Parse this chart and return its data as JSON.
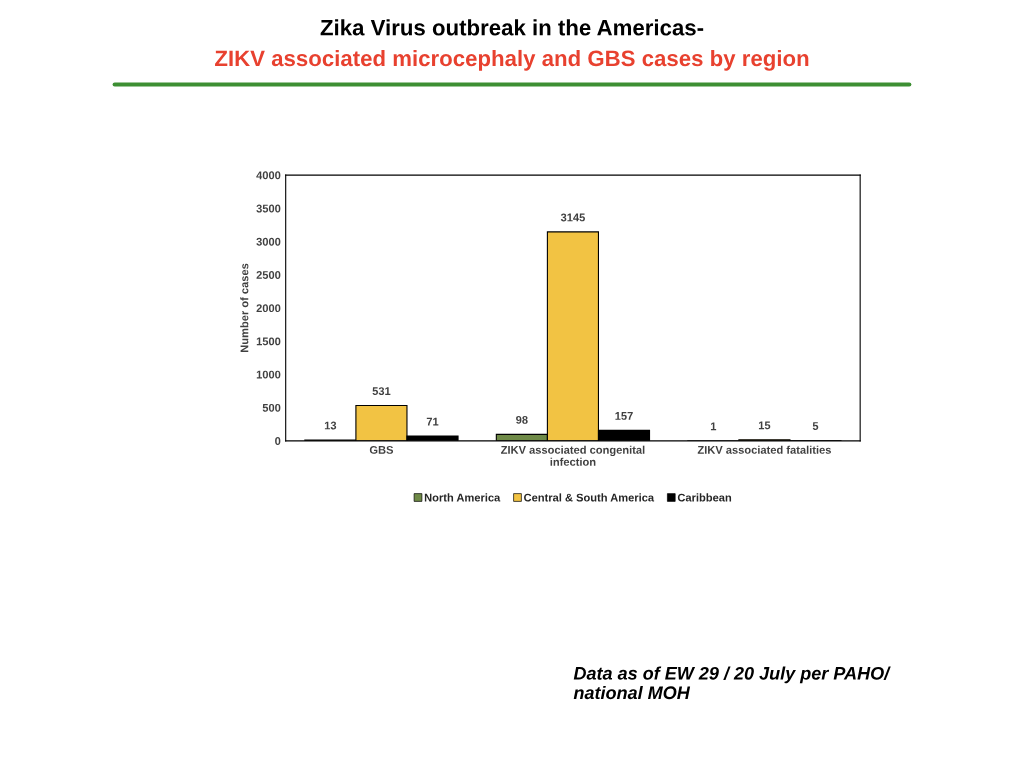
{
  "chart_data": {
    "type": "bar",
    "title": "Zika Virus outbreak in the Americas-",
    "subtitle": "ZIKV associated microcephaly and GBS cases by region",
    "ylabel": "Number of cases",
    "categories": [
      "GBS",
      "ZIKV associated congenital\ninfection",
      "ZIKV associated fatalities"
    ],
    "series": [
      {
        "name": "North America",
        "color": "#6f8a47",
        "values": [
          13,
          98,
          1
        ]
      },
      {
        "name": "Central & South America",
        "color": "#f2c343",
        "values": [
          531,
          3145,
          15
        ]
      },
      {
        "name": "Caribbean",
        "color": "#000000",
        "values": [
          71,
          157,
          5
        ]
      }
    ],
    "ylim": [
      0,
      4000
    ],
    "yticks": [
      0,
      500,
      1000,
      1500,
      2000,
      2500,
      3000,
      3500,
      4000
    ],
    "data_labels": true,
    "legend": "bottom",
    "grid": false,
    "annotations": [
      "Data as of EW 29 / 20 July per PAHO/\nnational MOH"
    ]
  }
}
